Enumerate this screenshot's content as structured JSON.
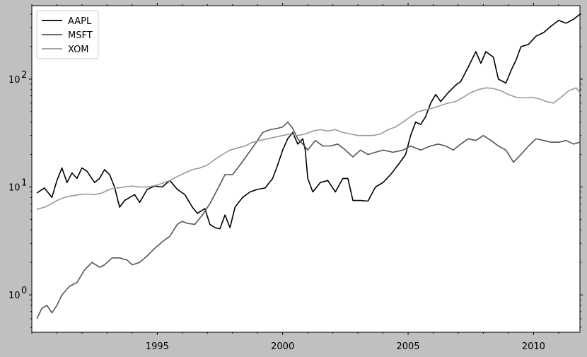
{
  "chart_data": {
    "type": "line",
    "title": "",
    "xlabel": "",
    "ylabel": "",
    "y_scale": "log",
    "xlim": [
      1990.0,
      2011.85
    ],
    "ylim": [
      0.45,
      480
    ],
    "grid": false,
    "legend_position": "top-left",
    "background": "#ffffff",
    "figure_background": "#c0c0c0",
    "x_ticks": [
      1995,
      2000,
      2005,
      2010
    ],
    "x_tick_labels": [
      "1995",
      "2000",
      "2005",
      "2010"
    ],
    "y_ticks": [
      1,
      10,
      100
    ],
    "y_tick_labels": [
      "10^0",
      "10^1",
      "10^2"
    ],
    "series": [
      {
        "name": "AAPL",
        "color": "#000000",
        "x": [
          1990.2,
          1990.5,
          1990.8,
          1991.0,
          1991.2,
          1991.4,
          1991.6,
          1991.8,
          1992.0,
          1992.2,
          1992.5,
          1992.7,
          1992.9,
          1993.1,
          1993.3,
          1993.5,
          1993.7,
          1993.9,
          1994.1,
          1994.3,
          1994.6,
          1994.9,
          1995.2,
          1995.5,
          1995.8,
          1996.1,
          1996.4,
          1996.6,
          1996.9,
          1997.1,
          1997.3,
          1997.5,
          1997.7,
          1997.9,
          1998.1,
          1998.4,
          1998.7,
          1999.0,
          1999.3,
          1999.6,
          1999.8,
          2000.0,
          2000.2,
          2000.4,
          2000.6,
          2000.8,
          2000.9,
          2001.0,
          2001.2,
          2001.5,
          2001.8,
          2002.1,
          2002.4,
          2002.6,
          2002.8,
          2003.1,
          2003.4,
          2003.7,
          2004.0,
          2004.3,
          2004.6,
          2004.9,
          2005.1,
          2005.3,
          2005.5,
          2005.7,
          2005.9,
          2006.1,
          2006.3,
          2006.6,
          2006.9,
          2007.1,
          2007.4,
          2007.7,
          2007.9,
          2008.1,
          2008.4,
          2008.6,
          2008.9,
          2009.1,
          2009.3,
          2009.5,
          2009.8,
          2010.1,
          2010.4,
          2010.7,
          2011.0,
          2011.3,
          2011.6,
          2011.85
        ],
        "values": [
          8.8,
          9.8,
          8.0,
          11.5,
          15.0,
          11.0,
          13.5,
          12.0,
          15.0,
          14.0,
          11.0,
          12.0,
          14.5,
          13.0,
          10.0,
          6.5,
          7.5,
          8.0,
          8.5,
          7.2,
          9.5,
          10.2,
          10.0,
          11.5,
          9.5,
          8.5,
          6.5,
          5.7,
          6.3,
          4.5,
          4.2,
          4.1,
          5.5,
          4.2,
          6.5,
          8.0,
          9.0,
          9.5,
          9.8,
          12.0,
          16.0,
          22.0,
          28.0,
          32.0,
          25.0,
          28.0,
          22.0,
          12.0,
          9.0,
          11.0,
          11.5,
          9.0,
          12.0,
          12.0,
          7.5,
          7.5,
          7.4,
          10.0,
          11.0,
          13.0,
          16.0,
          20.0,
          30.0,
          40.0,
          38.0,
          45.0,
          60.0,
          72.0,
          62.0,
          75.0,
          88.0,
          95.0,
          130.0,
          180.0,
          140.0,
          180.0,
          160.0,
          100.0,
          92.0,
          120.0,
          150.0,
          200.0,
          210.0,
          250.0,
          270.0,
          310.0,
          350.0,
          330.0,
          360.0,
          400.0
        ]
      },
      {
        "name": "MSFT",
        "color": "#555555",
        "x": [
          1990.2,
          1990.4,
          1990.6,
          1990.8,
          1991.0,
          1991.2,
          1991.5,
          1991.8,
          1992.1,
          1992.4,
          1992.7,
          1992.9,
          1993.2,
          1993.5,
          1993.8,
          1994.0,
          1994.3,
          1994.6,
          1994.9,
          1995.2,
          1995.5,
          1995.8,
          1996.0,
          1996.2,
          1996.5,
          1996.8,
          1997.1,
          1997.4,
          1997.7,
          1998.0,
          1998.3,
          1998.6,
          1998.9,
          1999.2,
          1999.5,
          1999.8,
          2000.0,
          2000.2,
          2000.4,
          2000.6,
          2000.8,
          2001.0,
          2001.3,
          2001.6,
          2001.9,
          2002.2,
          2002.5,
          2002.8,
          2003.1,
          2003.4,
          2003.7,
          2004.0,
          2004.4,
          2004.8,
          2005.1,
          2005.5,
          2005.9,
          2006.2,
          2006.5,
          2006.8,
          2007.1,
          2007.4,
          2007.7,
          2008.0,
          2008.3,
          2008.6,
          2008.9,
          2009.2,
          2009.5,
          2009.8,
          2010.1,
          2010.4,
          2010.7,
          2011.0,
          2011.3,
          2011.6,
          2011.85
        ],
        "values": [
          0.6,
          0.75,
          0.8,
          0.68,
          0.8,
          1.0,
          1.2,
          1.3,
          1.7,
          2.0,
          1.8,
          1.9,
          2.2,
          2.2,
          2.1,
          1.9,
          2.0,
          2.3,
          2.7,
          3.1,
          3.5,
          4.5,
          4.8,
          4.6,
          4.5,
          5.5,
          7.0,
          9.5,
          13.0,
          13.0,
          16.0,
          20.0,
          25.0,
          32.0,
          34.0,
          35.0,
          36.0,
          40.0,
          35.0,
          28.0,
          25.0,
          22.0,
          27.0,
          24.0,
          24.0,
          25.0,
          22.0,
          19.0,
          22.0,
          20.0,
          21.0,
          22.0,
          21.0,
          22.0,
          24.0,
          22.0,
          24.0,
          25.0,
          24.0,
          22.0,
          25.0,
          28.0,
          27.0,
          30.0,
          27.0,
          24.0,
          22.0,
          17.0,
          20.0,
          24.0,
          28.0,
          27.0,
          26.0,
          26.0,
          27.0,
          25.0,
          26.0
        ]
      },
      {
        "name": "XOM",
        "color": "#999999",
        "x": [
          1990.2,
          1990.5,
          1990.8,
          1991.0,
          1991.3,
          1991.6,
          1991.9,
          1992.2,
          1992.5,
          1992.8,
          1993.1,
          1993.4,
          1993.7,
          1994.0,
          1994.3,
          1994.6,
          1994.9,
          1995.2,
          1995.5,
          1995.8,
          1996.1,
          1996.4,
          1996.7,
          1997.0,
          1997.3,
          1997.6,
          1997.9,
          1998.2,
          1998.5,
          1998.8,
          1999.1,
          1999.4,
          1999.7,
          2000.0,
          2000.3,
          2000.6,
          2000.9,
          2001.2,
          2001.5,
          2001.8,
          2002.1,
          2002.4,
          2002.7,
          2003.0,
          2003.3,
          2003.6,
          2003.9,
          2004.2,
          2004.5,
          2004.8,
          2005.1,
          2005.4,
          2005.7,
          2006.0,
          2006.3,
          2006.6,
          2006.9,
          2007.2,
          2007.5,
          2007.8,
          2008.1,
          2008.4,
          2008.7,
          2009.0,
          2009.3,
          2009.6,
          2009.9,
          2010.2,
          2010.5,
          2010.8,
          2011.1,
          2011.4,
          2011.7,
          2011.85
        ],
        "values": [
          6.2,
          6.5,
          7.0,
          7.5,
          8.0,
          8.3,
          8.5,
          8.6,
          8.5,
          8.8,
          9.5,
          9.8,
          10.0,
          10.2,
          10.0,
          10.0,
          10.3,
          10.8,
          11.5,
          12.5,
          13.5,
          14.5,
          15.0,
          16.0,
          18.0,
          20.0,
          22.0,
          23.0,
          24.0,
          26.0,
          27.0,
          28.0,
          29.0,
          30.0,
          31.0,
          30.0,
          31.0,
          33.0,
          34.0,
          33.0,
          34.0,
          32.0,
          31.0,
          30.0,
          30.0,
          30.0,
          31.0,
          34.0,
          36.0,
          40.0,
          45.0,
          50.0,
          52.0,
          54.0,
          57.0,
          60.0,
          62.0,
          68.0,
          75.0,
          80.0,
          83.0,
          82.0,
          78.0,
          72.0,
          68.0,
          67.0,
          68.0,
          66.0,
          62.0,
          60.0,
          68.0,
          78.0,
          83.0,
          75.0
        ]
      }
    ]
  }
}
